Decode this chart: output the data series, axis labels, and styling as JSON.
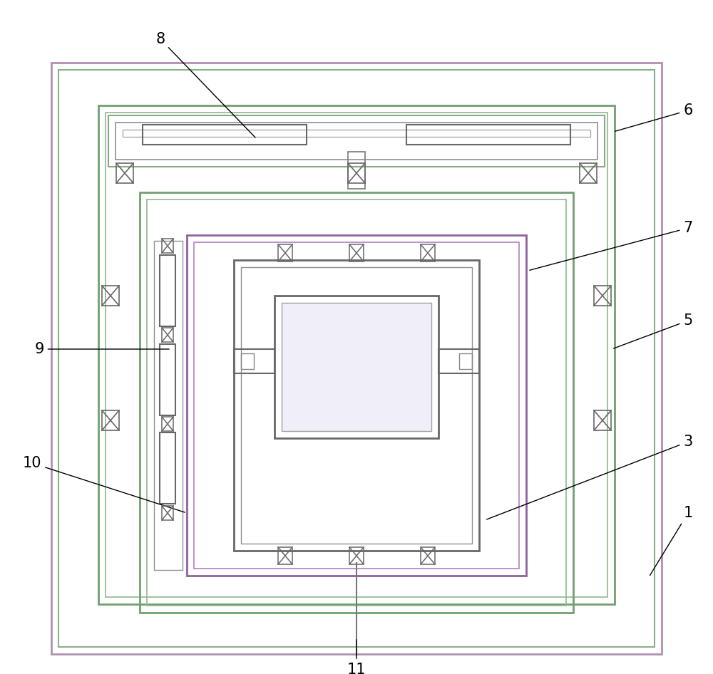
{
  "bg_color": "#ffffff",
  "frame_colors": {
    "outer1": "#c8a0c8",
    "outer2": "#70a870",
    "outer3": "#70a870",
    "inner1": "#70a870",
    "inner2": "#70a870",
    "inner3": "#c8a0c8",
    "mirror": "#c8b4d0"
  },
  "gray": "#787878",
  "darkgray": "#585858",
  "lightgray": "#a0a0a0"
}
